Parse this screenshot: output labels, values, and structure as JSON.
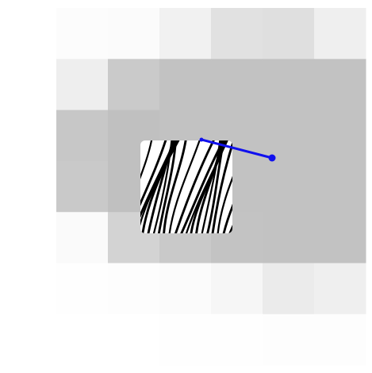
{
  "scene": {
    "background": "#ffffff",
    "heatmap": {
      "rows": 7,
      "cols": 6,
      "cells": [
        [
          "#fcfcfc",
          "#fbfbfb",
          "#f1f1f1",
          "#e1e1e1",
          "#dfdfdf",
          "#efefef"
        ],
        [
          "#eeeeee",
          "#cacaca",
          "#c2c2c2",
          "#c2c2c2",
          "#c2c2c2",
          "#c2c2c2"
        ],
        [
          "#c7c7c7",
          "#c0c0c0",
          "#c2c2c2",
          "#c2c2c2",
          "#c2c2c2",
          "#c2c2c2"
        ],
        [
          "#c9c9c9",
          "#c0c0c0",
          "#c2c2c2",
          "#c2c2c2",
          "#c2c2c2",
          "#c2c2c2"
        ],
        [
          "#fafafa",
          "#d3d3d3",
          "#c9c9c9",
          "#c3c3c3",
          "#c2c2c2",
          "#c2c2c2"
        ],
        [
          "#fefefe",
          "#fdfdfd",
          "#fbfbfb",
          "#f6f6f6",
          "#ebebeb",
          "#efefef"
        ],
        [
          "#ffffff",
          "#ffffff",
          "#fefefe",
          "#fefefe",
          "#fdfdfd",
          "#fdfdfd"
        ]
      ]
    },
    "texture_patch": {
      "icon": "zebra-stripe-texture",
      "stripe_color": "#000000",
      "base_color": "#ffffff"
    },
    "pointer_line": {
      "color": "#1010ee"
    }
  }
}
